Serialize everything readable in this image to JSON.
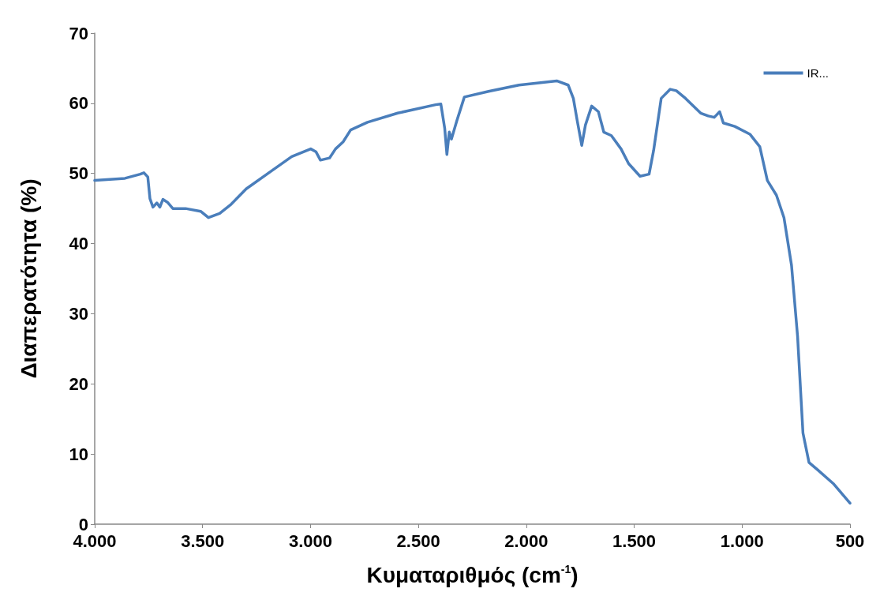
{
  "chart_data": {
    "type": "line",
    "xlabel": "Κυματαριθμός (cm$^{-1}$)",
    "ylabel": "Διαπερατότητα (%)",
    "xlim": [
      4000,
      500
    ],
    "ylim": [
      0,
      70
    ],
    "xticks": [
      {
        "value": 4000,
        "label": "4.000"
      },
      {
        "value": 3500,
        "label": "3.500"
      },
      {
        "value": 3000,
        "label": "3.000"
      },
      {
        "value": 2500,
        "label": "2.500"
      },
      {
        "value": 2000,
        "label": "2.000"
      },
      {
        "value": 1500,
        "label": "1.500"
      },
      {
        "value": 1000,
        "label": "1.000"
      },
      500
    ],
    "yticks": [
      0,
      10,
      20,
      30,
      40,
      50,
      60,
      70
    ],
    "grid": false,
    "legend": "top right",
    "marker": "none",
    "line_style": "solid",
    "series": [
      {
        "name": "IR...",
        "color": "#4a7ebb",
        "x": [
          4000,
          3860,
          3789,
          3772,
          3754,
          3744,
          3730,
          3712,
          3698,
          3684,
          3663,
          3638,
          3579,
          3509,
          3473,
          3421,
          3368,
          3298,
          3193,
          3087,
          2999,
          2975,
          2954,
          2912,
          2884,
          2849,
          2814,
          2736,
          2596,
          2420,
          2396,
          2378,
          2368,
          2357,
          2347,
          2322,
          2287,
          2175,
          2034,
          1859,
          1806,
          1782,
          1764,
          1743,
          1726,
          1697,
          1666,
          1641,
          1606,
          1561,
          1526,
          1473,
          1431,
          1410,
          1375,
          1333,
          1305,
          1262,
          1192,
          1157,
          1129,
          1104,
          1087,
          1034,
          964,
          918,
          883,
          841,
          806,
          771,
          743,
          718,
          690,
          648,
          578,
          500
        ],
        "values": [
          49.0,
          49.3,
          49.9,
          50.1,
          49.5,
          46.4,
          45.2,
          45.8,
          45.2,
          46.3,
          45.9,
          45.0,
          45.0,
          44.6,
          43.7,
          44.3,
          45.6,
          47.8,
          50.1,
          52.4,
          53.5,
          53.1,
          51.9,
          52.2,
          53.5,
          54.5,
          56.2,
          57.3,
          58.6,
          59.8,
          59.9,
          56.4,
          52.7,
          55.9,
          54.9,
          57.5,
          60.9,
          61.7,
          62.6,
          63.2,
          62.6,
          60.7,
          57.5,
          54.0,
          56.9,
          59.6,
          58.8,
          55.9,
          55.4,
          53.5,
          51.4,
          49.6,
          49.9,
          53.3,
          60.7,
          62.0,
          61.8,
          60.7,
          58.6,
          58.2,
          58.0,
          58.8,
          57.2,
          56.7,
          55.6,
          53.8,
          49.0,
          46.9,
          43.7,
          36.9,
          26.8,
          13.0,
          8.8,
          7.7,
          5.8,
          3.0
        ]
      }
    ]
  }
}
